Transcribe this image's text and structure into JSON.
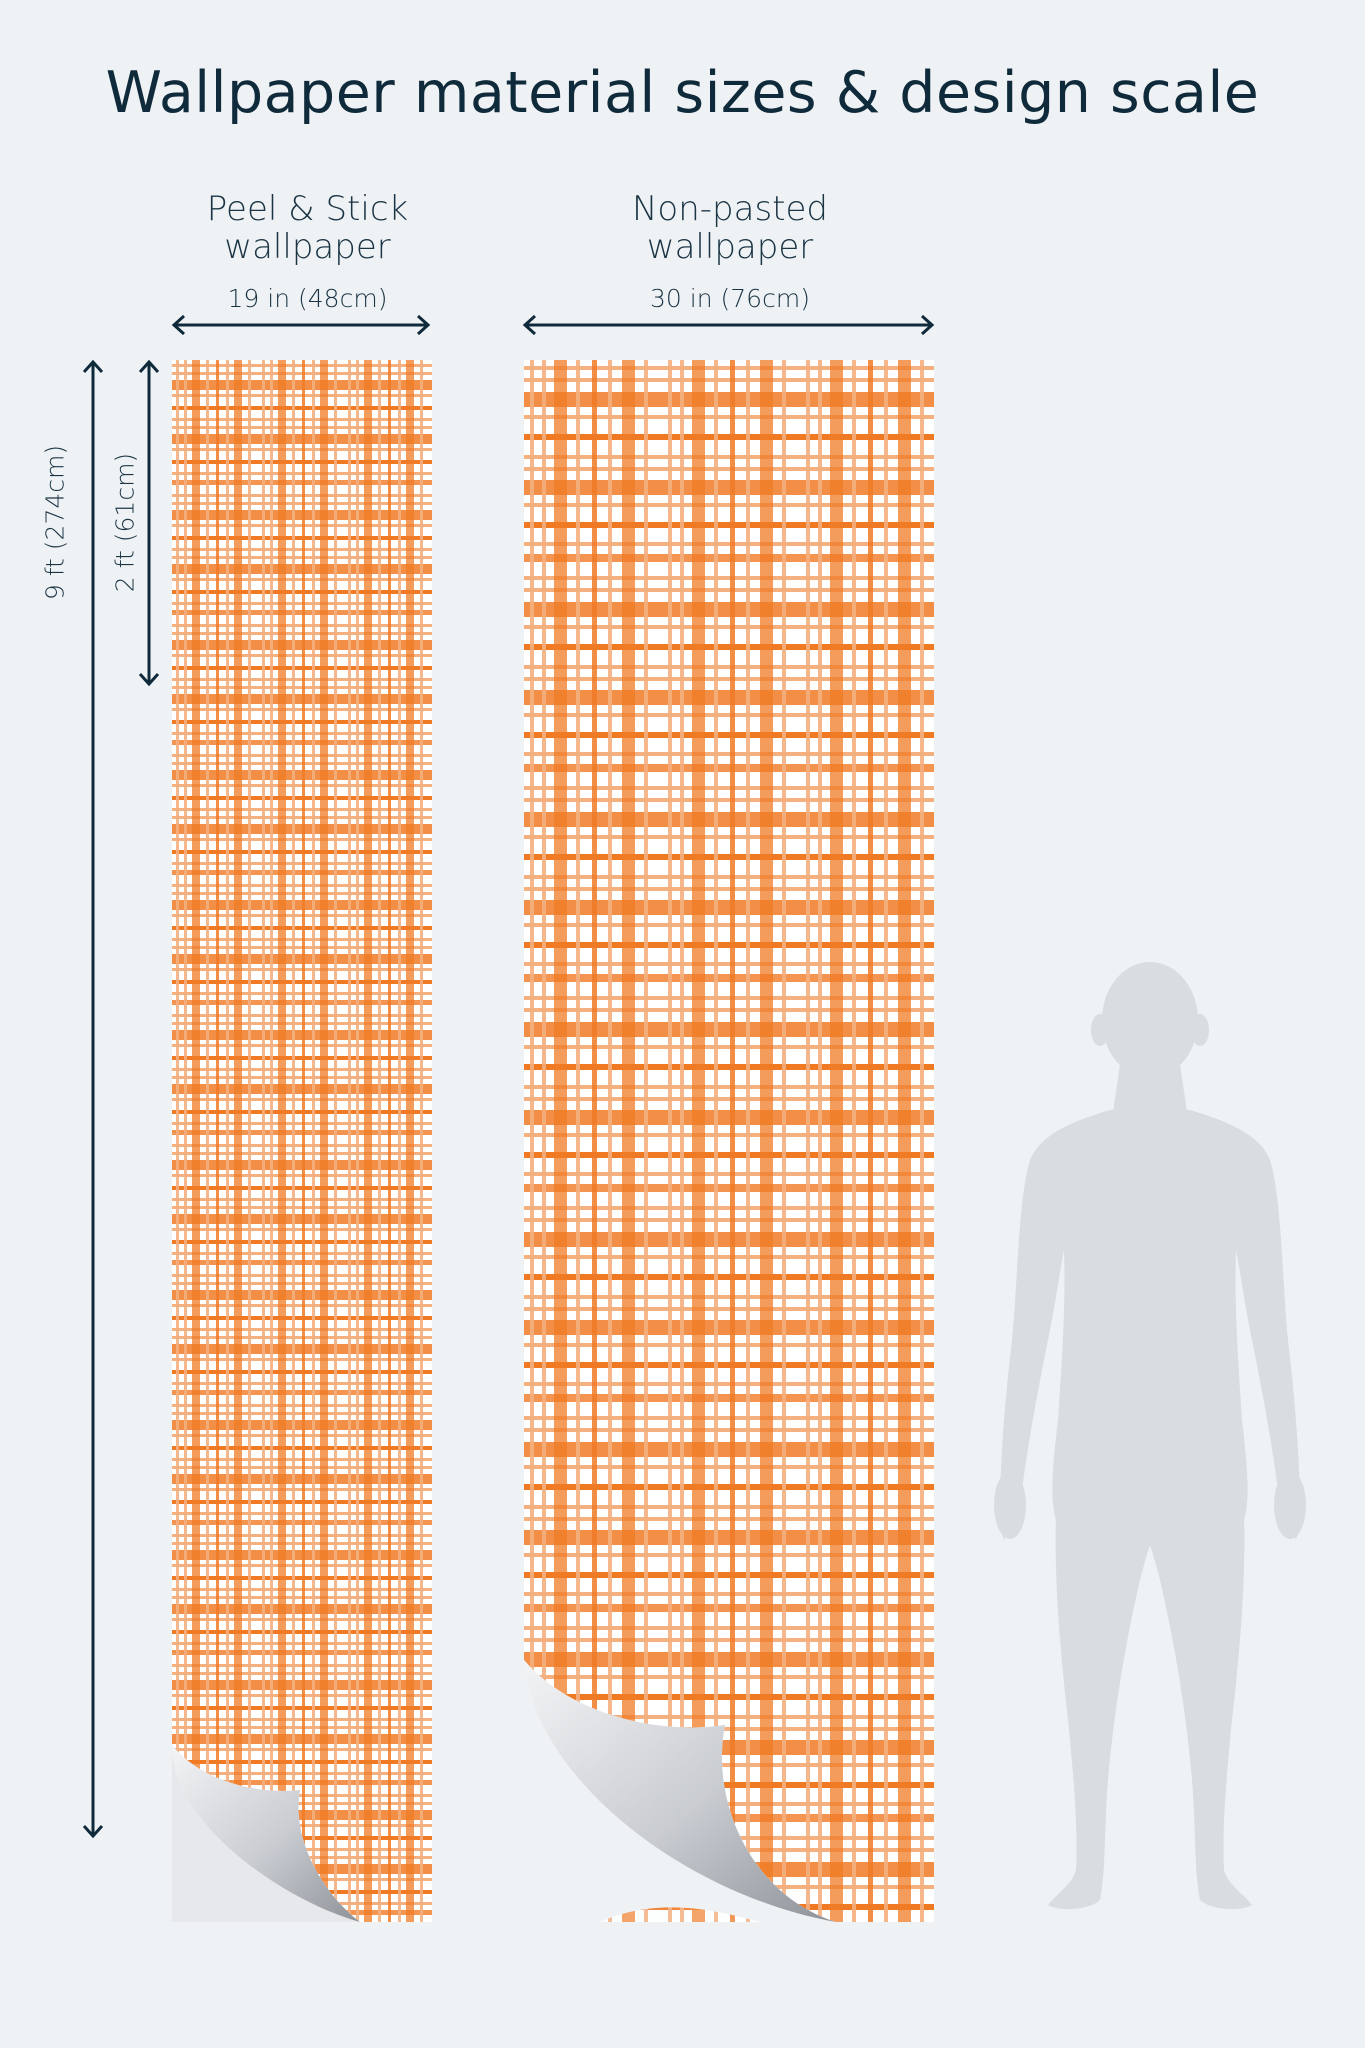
{
  "title": "Wallpaper material sizes & design scale",
  "colors": {
    "background": "#eff2f5",
    "text": "#0f2a3a",
    "plaid_primary": "#f07a24",
    "plaid_light": "#f4b07f",
    "silhouette": "#d9dce0"
  },
  "peel_stick": {
    "label_line1": "Peel & Stick",
    "label_line2": "wallpaper",
    "width": "19 in (48cm)"
  },
  "non_pasted": {
    "label_line1": "Non-pasted",
    "label_line2": "wallpaper",
    "width": "30 in (76cm)"
  },
  "height_total": "9 ft (274cm)",
  "repeat_height": "2 ft (61cm)",
  "icons": {
    "figure": "human-silhouette-icon",
    "curl": "page-curl-icon"
  }
}
